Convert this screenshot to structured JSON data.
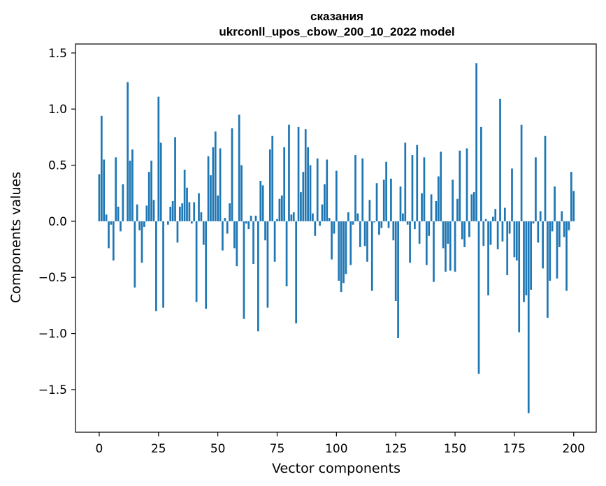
{
  "chart_data": {
    "type": "bar",
    "title": "сказания",
    "subtitle": "ukrconll_upos_cbow_200_10_2022 model",
    "xlabel": "Vector components",
    "ylabel": "Components values",
    "xlim": [
      -10,
      209.5
    ],
    "ylim": [
      -1.88,
      1.58
    ],
    "xticks": [
      0,
      25,
      50,
      75,
      100,
      125,
      150,
      175,
      200
    ],
    "yticks": [
      -1.5,
      -1.0,
      -0.5,
      0.0,
      0.5,
      1.0,
      1.5
    ],
    "ytick_labels": [
      "−1.5",
      "−1.0",
      "−0.5",
      "0.0",
      "0.5",
      "1.0",
      "1.5"
    ],
    "grid": false,
    "bar_color": "#1f77b4",
    "values": [
      0.42,
      0.94,
      0.55,
      0.06,
      -0.24,
      -0.03,
      -0.35,
      0.57,
      0.13,
      -0.09,
      0.33,
      0.0,
      1.24,
      0.54,
      0.64,
      -0.59,
      0.15,
      -0.08,
      -0.37,
      -0.05,
      0.14,
      0.44,
      0.54,
      0.19,
      -0.8,
      1.11,
      0.7,
      -0.77,
      0.0,
      -0.03,
      0.13,
      0.18,
      0.75,
      -0.19,
      0.13,
      0.16,
      0.46,
      0.3,
      0.17,
      -0.02,
      0.17,
      -0.72,
      0.25,
      0.08,
      -0.21,
      -0.78,
      0.58,
      0.41,
      0.66,
      0.8,
      0.23,
      0.65,
      -0.26,
      0.03,
      -0.11,
      0.16,
      0.83,
      -0.24,
      -0.4,
      0.95,
      0.5,
      -0.87,
      -0.02,
      -0.07,
      0.05,
      -0.38,
      0.05,
      -0.98,
      0.36,
      0.32,
      -0.17,
      -0.77,
      0.64,
      0.76,
      -0.36,
      0.02,
      0.2,
      0.23,
      0.66,
      -0.58,
      0.86,
      0.06,
      0.08,
      -0.91,
      0.84,
      0.26,
      0.44,
      0.82,
      0.66,
      0.5,
      0.07,
      -0.13,
      0.56,
      -0.04,
      0.15,
      0.33,
      0.55,
      0.03,
      -0.34,
      -0.11,
      0.45,
      -0.53,
      -0.63,
      -0.55,
      -0.47,
      0.08,
      -0.39,
      -0.03,
      0.59,
      0.07,
      -0.23,
      0.56,
      -0.22,
      -0.36,
      0.19,
      -0.62,
      -0.01,
      0.34,
      -0.12,
      -0.06,
      0.37,
      0.53,
      -0.06,
      0.38,
      -0.17,
      -0.71,
      -1.04,
      0.31,
      0.07,
      0.7,
      -0.03,
      -0.37,
      0.59,
      -0.07,
      0.68,
      -0.2,
      0.25,
      0.57,
      -0.39,
      -0.13,
      0.24,
      -0.54,
      0.18,
      0.4,
      0.62,
      -0.24,
      -0.45,
      -0.2,
      -0.44,
      0.37,
      -0.45,
      0.2,
      0.63,
      -0.16,
      -0.23,
      0.65,
      -0.14,
      0.24,
      0.26,
      1.41,
      -1.36,
      0.84,
      -0.22,
      0.02,
      -0.66,
      -0.21,
      0.04,
      0.11,
      -0.25,
      1.09,
      -0.18,
      0.12,
      -0.48,
      -0.11,
      0.47,
      -0.32,
      -0.35,
      -0.99,
      0.86,
      -0.72,
      -0.66,
      -1.71,
      -0.61,
      -0.02,
      0.57,
      -0.19,
      0.09,
      -0.42,
      0.76,
      -0.86,
      -0.53,
      -0.09,
      0.31,
      -0.51,
      -0.23,
      0.09,
      -0.14,
      -0.62,
      -0.08,
      0.44,
      0.27
    ]
  }
}
